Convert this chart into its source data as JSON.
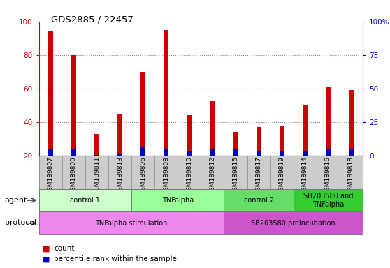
{
  "title": "GDS2885 / 22457",
  "samples": [
    "GSM189807",
    "GSM189809",
    "GSM189811",
    "GSM189813",
    "GSM189806",
    "GSM189808",
    "GSM189810",
    "GSM189812",
    "GSM189815",
    "GSM189817",
    "GSM189819",
    "GSM189814",
    "GSM189816",
    "GSM189818"
  ],
  "red_values": [
    94,
    80,
    33,
    45,
    70,
    95,
    44,
    53,
    34,
    37,
    38,
    50,
    61,
    59
  ],
  "blue_values": [
    4,
    4,
    0,
    1,
    5,
    4,
    3,
    4,
    4,
    3,
    3,
    3,
    4,
    4
  ],
  "ymin": 20,
  "ymax": 100,
  "yticks_left": [
    20,
    40,
    60,
    80,
    100
  ],
  "yticks_right_positions": [
    20,
    40,
    60,
    80,
    100
  ],
  "yticks_right_labels": [
    "0",
    "25",
    "50",
    "75",
    "100%"
  ],
  "agent_groups": [
    {
      "label": "control 1",
      "start": 0,
      "end": 3,
      "color": "#ccffcc"
    },
    {
      "label": "TNFalpha",
      "start": 4,
      "end": 7,
      "color": "#99ff99"
    },
    {
      "label": "control 2",
      "start": 8,
      "end": 10,
      "color": "#66dd66"
    },
    {
      "label": "SB203580 and\nTNFalpha",
      "start": 11,
      "end": 13,
      "color": "#33cc33"
    }
  ],
  "protocol_groups": [
    {
      "label": "TNFalpha stimulation",
      "start": 0,
      "end": 7,
      "color": "#ee88ee"
    },
    {
      "label": "SB203580 preincubation",
      "start": 8,
      "end": 13,
      "color": "#cc55cc"
    }
  ],
  "bar_color_red": "#cc0000",
  "bar_color_blue": "#0000cc",
  "bar_width": 0.2,
  "background_color": "#ffffff",
  "tick_color_left": "#cc0000",
  "tick_color_right": "#0000cc",
  "grid_color": "#888888",
  "legend_red": "count",
  "legend_blue": "percentile rank within the sample",
  "label_bg": "#cccccc",
  "label_border": "#888888"
}
